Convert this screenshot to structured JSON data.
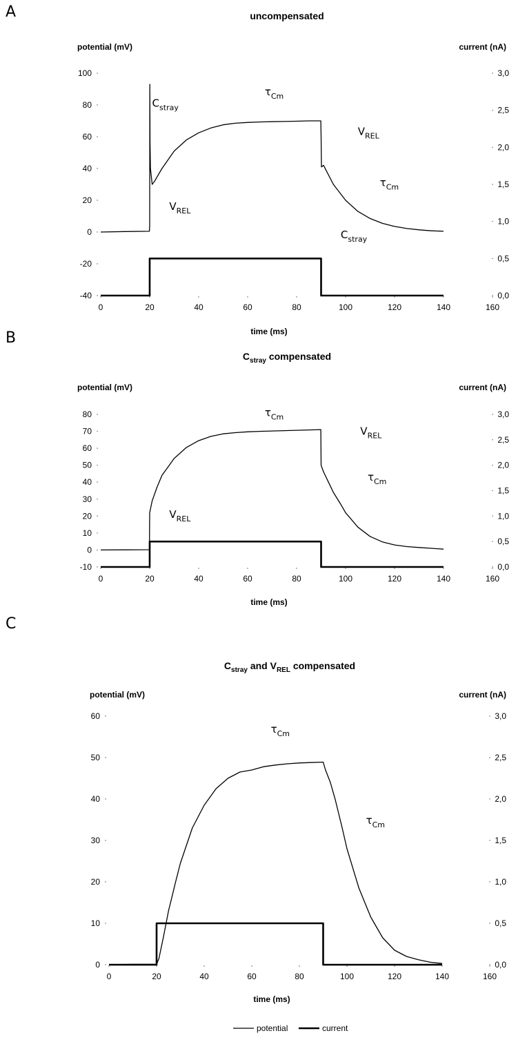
{
  "legend": {
    "potential": "potential",
    "current": "current"
  },
  "chart_data": [
    {
      "panel": "A",
      "type": "line",
      "title": "uncompensated",
      "title_base": "uncompensated",
      "title_sub": "",
      "title_rest": "",
      "title_sub2": "",
      "title_rest2": "",
      "xlabel": "time (ms)",
      "ylabel_left": "potential (mV)",
      "ylabel_right": "current (nA)",
      "xlim": [
        0,
        160
      ],
      "ylim_left": [
        -40,
        100
      ],
      "ylim_right": [
        0,
        3
      ],
      "x_ticks": [
        "0",
        "20",
        "40",
        "60",
        "80",
        "100",
        "120",
        "140",
        "160"
      ],
      "y_ticks_left": [
        "-40",
        "-20",
        "0",
        "20",
        "40",
        "60",
        "80",
        "100"
      ],
      "y_ticks_right": [
        "0,0",
        "0,5",
        "1,0",
        "1,5",
        "2,0",
        "2,5",
        "3,0"
      ],
      "series": [
        {
          "name": "potential",
          "axis": "left",
          "x": [
            0,
            10,
            19.9,
            20,
            20.05,
            20.15,
            20.3,
            21,
            22,
            25,
            30,
            35,
            40,
            45,
            50,
            55,
            60,
            65,
            70,
            75,
            80,
            85,
            89.9,
            90,
            90.15,
            91,
            92,
            95,
            100,
            105,
            110,
            115,
            120,
            125,
            130,
            135,
            140
          ],
          "values": [
            0,
            0.3,
            0.5,
            4,
            93,
            57,
            40,
            30,
            32,
            40,
            51,
            58,
            62.5,
            65.5,
            67.5,
            68.5,
            69,
            69.3,
            69.5,
            69.6,
            69.8,
            70,
            70,
            60,
            41,
            42,
            39,
            30,
            20,
            13,
            8.5,
            5.5,
            3.5,
            2.2,
            1.4,
            0.8,
            0.5
          ]
        },
        {
          "name": "current",
          "axis": "right",
          "x": [
            0,
            20,
            20,
            90,
            90,
            140
          ],
          "values": [
            0,
            0,
            0.5,
            0.5,
            0,
            0
          ]
        }
      ],
      "annotations": [
        {
          "base": "C",
          "sub": "stray",
          "x": 21,
          "y": 79
        },
        {
          "base": "τ",
          "sub": "Cm",
          "x": 67,
          "y": 86
        },
        {
          "base": "V",
          "sub": "REL",
          "x": 105,
          "y": 61
        },
        {
          "base": "τ",
          "sub": "Cm",
          "x": 114,
          "y": 29
        },
        {
          "base": "V",
          "sub": "REL",
          "x": 28,
          "y": 14
        },
        {
          "base": "C",
          "sub": "stray",
          "x": 98,
          "y": -4
        }
      ]
    },
    {
      "panel": "B",
      "type": "line",
      "title": "Cstray compensated",
      "title_base": "C",
      "title_sub": "stray",
      "title_rest": " compensated",
      "title_sub2": "",
      "title_rest2": "",
      "xlabel": "time (ms)",
      "ylabel_left": "potential (mV)",
      "ylabel_right": "current (nA)",
      "xlim": [
        0,
        160
      ],
      "ylim_left": [
        -10,
        80
      ],
      "ylim_right": [
        0,
        3
      ],
      "x_ticks": [
        "0",
        "20",
        "40",
        "60",
        "80",
        "100",
        "120",
        "140",
        "160"
      ],
      "y_ticks_left": [
        "-10",
        "0",
        "10",
        "20",
        "30",
        "40",
        "50",
        "60",
        "70",
        "80"
      ],
      "y_ticks_right": [
        "0,0",
        "0,5",
        "1,0",
        "1,5",
        "2,0",
        "2,5",
        "3,0"
      ],
      "series": [
        {
          "name": "potential",
          "axis": "left",
          "x": [
            0,
            10,
            19.9,
            20,
            21,
            23,
            25,
            28,
            30,
            35,
            40,
            45,
            50,
            55,
            60,
            65,
            70,
            75,
            80,
            85,
            89.9,
            90,
            91,
            93,
            95,
            98,
            100,
            105,
            110,
            115,
            120,
            125,
            130,
            135,
            140
          ],
          "values": [
            0,
            0.1,
            0.2,
            22,
            29,
            37,
            44,
            50,
            54,
            60.5,
            64.5,
            67,
            68.5,
            69.2,
            69.7,
            70,
            70.2,
            70.4,
            70.6,
            70.8,
            71,
            50,
            46,
            40,
            34,
            27,
            22,
            13.5,
            8,
            4.8,
            3,
            2,
            1.5,
            1,
            0.5
          ]
        },
        {
          "name": "current",
          "axis": "right",
          "x": [
            0,
            20,
            20,
            90,
            90,
            140
          ],
          "values": [
            0,
            0,
            0.5,
            0.5,
            0,
            0
          ]
        }
      ],
      "annotations": [
        {
          "base": "τ",
          "sub": "Cm",
          "x": 67,
          "y": 79
        },
        {
          "base": "V",
          "sub": "REL",
          "x": 106,
          "y": 68
        },
        {
          "base": "τ",
          "sub": "Cm",
          "x": 109,
          "y": 41
        },
        {
          "base": "V",
          "sub": "REL",
          "x": 28,
          "y": 19
        }
      ]
    },
    {
      "panel": "C",
      "type": "line",
      "title": "Cstray and VREL compensated",
      "title_base": "C",
      "title_sub": "stray",
      "title_rest": " and V",
      "title_sub2": "REL",
      "title_rest2": " compensated",
      "xlabel": "time (ms)",
      "ylabel_left": "potential (mV)",
      "ylabel_right": "current (nA)",
      "xlim": [
        0,
        160
      ],
      "ylim_left": [
        0,
        60
      ],
      "ylim_right": [
        0,
        3
      ],
      "x_ticks": [
        "0",
        "20",
        "40",
        "60",
        "80",
        "100",
        "120",
        "140",
        "160"
      ],
      "y_ticks_left": [
        "0",
        "10",
        "20",
        "30",
        "40",
        "50",
        "60"
      ],
      "y_ticks_right": [
        "0,0",
        "0,5",
        "1,0",
        "1,5",
        "2,0",
        "2,5",
        "3,0"
      ],
      "series": [
        {
          "name": "potential",
          "axis": "left",
          "x": [
            0,
            10,
            20,
            21,
            23,
            25,
            28,
            30,
            35,
            40,
            45,
            50,
            55,
            60,
            65,
            70,
            75,
            80,
            85,
            90,
            91,
            93,
            95,
            98,
            100,
            105,
            110,
            115,
            120,
            125,
            130,
            135,
            140
          ],
          "values": [
            0,
            0.1,
            0.1,
            1.5,
            7,
            13,
            20,
            24.5,
            33,
            38.5,
            42.5,
            45,
            46.5,
            47,
            47.8,
            48.2,
            48.5,
            48.7,
            48.8,
            48.9,
            47,
            44,
            40,
            33,
            28,
            18.5,
            11.5,
            6.5,
            3.5,
            2,
            1.2,
            0.6,
            0.3
          ]
        },
        {
          "name": "current",
          "axis": "right",
          "x": [
            0,
            20,
            20,
            90,
            90,
            140
          ],
          "values": [
            0,
            0,
            0.5,
            0.5,
            0,
            0
          ]
        }
      ],
      "annotations": [
        {
          "base": "τ",
          "sub": "Cm",
          "x": 68,
          "y": 56
        },
        {
          "base": "τ",
          "sub": "Cm",
          "x": 108,
          "y": 34
        }
      ]
    }
  ]
}
